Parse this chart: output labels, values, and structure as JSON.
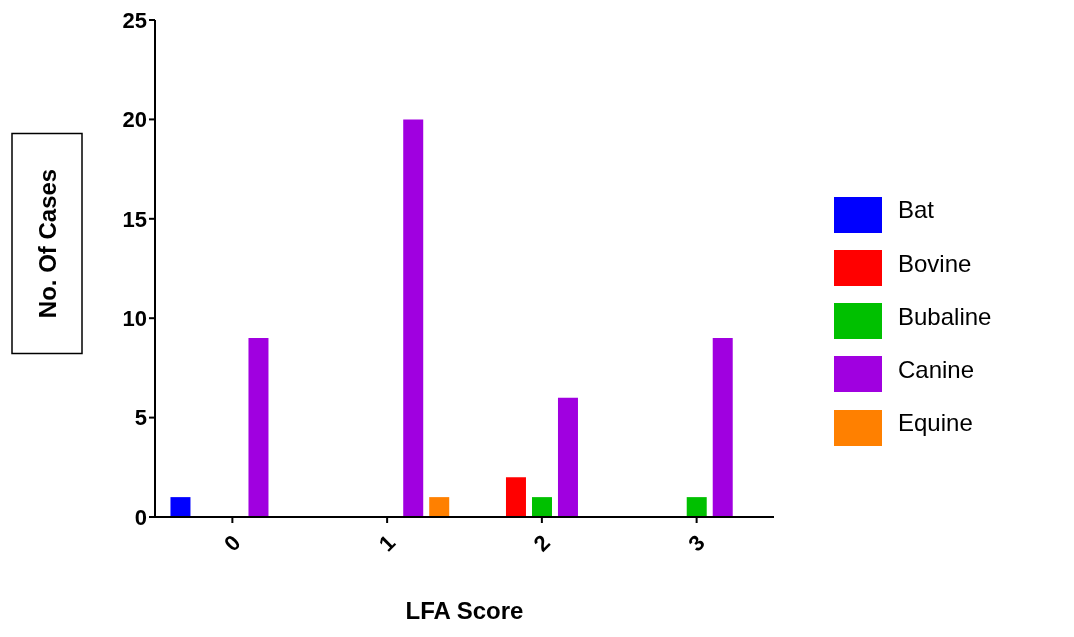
{
  "chart_data": {
    "type": "bar",
    "xlabel": "LFA Score",
    "ylabel": "No. Of Cases",
    "categories": [
      "0",
      "1",
      "2",
      "3"
    ],
    "series": [
      {
        "name": "Bat",
        "color": "#0000ff",
        "values": [
          1,
          0,
          0,
          0
        ]
      },
      {
        "name": "Bovine",
        "color": "#ff0000",
        "values": [
          0,
          0,
          2,
          0
        ]
      },
      {
        "name": "Bubaline",
        "color": "#00c000",
        "values": [
          0,
          0,
          1,
          1
        ]
      },
      {
        "name": "Canine",
        "color": "#a000e0",
        "values": [
          9,
          20,
          6,
          9
        ]
      },
      {
        "name": "Equine",
        "color": "#ff8000",
        "values": [
          0,
          1,
          0,
          0
        ]
      }
    ],
    "ylim": [
      0,
      25
    ],
    "yticks": [
      0,
      5,
      10,
      15,
      20,
      25
    ],
    "grid": false,
    "legend": "right"
  }
}
